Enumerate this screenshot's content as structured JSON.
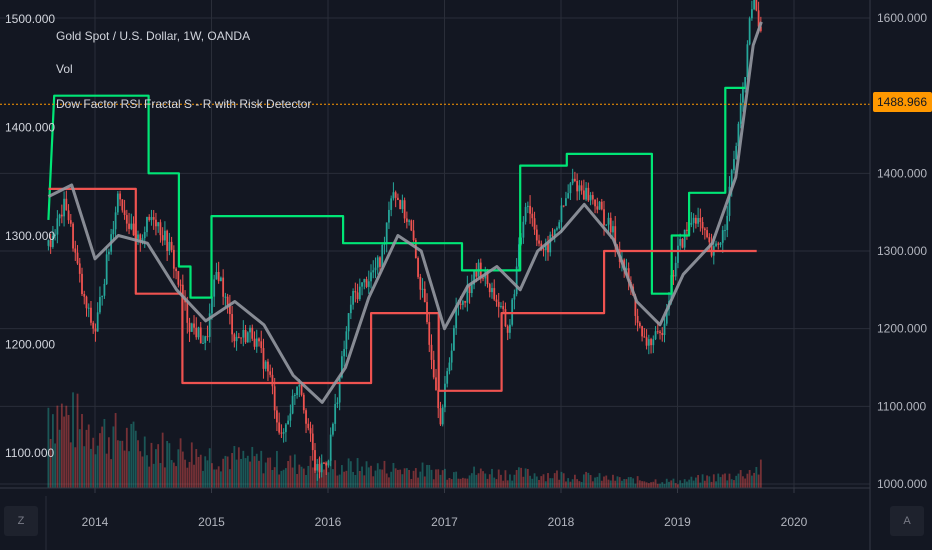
{
  "legend": {
    "symbol_line": "Gold Spot / U.S. Dollar, 1W, OANDA",
    "volume_label": "Vol",
    "indicator_label": "Dow Factor RSI Fractal S - R with Risk Detector"
  },
  "last_price_label": "1488.966",
  "corner_left_label": "Z",
  "corner_right_label": "A",
  "colors": {
    "background": "#131722",
    "resistance": "#00e676",
    "support": "#ef5350",
    "moving_average": "#9598a1",
    "up_candle": "#26a69a",
    "down_candle": "#ef5350",
    "last_price": "#ff9800",
    "grid": "#2a2e39"
  },
  "chart_data": {
    "type": "candlestick",
    "title": "Gold Spot / U.S. Dollar, 1W, OANDA",
    "x_ticks": [
      "2014",
      "2015",
      "2016",
      "2017",
      "2018",
      "2019",
      "2020"
    ],
    "left_axis_ticks": [
      "1500.000",
      "1400.000",
      "1300.000",
      "1200.000",
      "1100.000"
    ],
    "left_axis_range": [
      1070,
      1503
    ],
    "right_axis_ticks": [
      "1600.000",
      "1400.000",
      "1300.000",
      "1200.000",
      "1100.000",
      "1000.000"
    ],
    "right_axis_range": [
      998,
      1605
    ],
    "last_price": 1488.966,
    "x_range": [
      2013.6,
      2020.95
    ],
    "price_path": [
      [
        2013.6,
        1290
      ],
      [
        2013.75,
        1330
      ],
      [
        2013.9,
        1240
      ],
      [
        2014.0,
        1210
      ],
      [
        2014.2,
        1340
      ],
      [
        2014.35,
        1290
      ],
      [
        2014.5,
        1320
      ],
      [
        2014.65,
        1285
      ],
      [
        2014.8,
        1220
      ],
      [
        2014.95,
        1200
      ],
      [
        2015.05,
        1270
      ],
      [
        2015.2,
        1205
      ],
      [
        2015.35,
        1210
      ],
      [
        2015.5,
        1170
      ],
      [
        2015.6,
        1110
      ],
      [
        2015.75,
        1170
      ],
      [
        2015.9,
        1080
      ],
      [
        2016.0,
        1095
      ],
      [
        2016.2,
        1240
      ],
      [
        2016.45,
        1275
      ],
      [
        2016.55,
        1345
      ],
      [
        2016.7,
        1310
      ],
      [
        2016.85,
        1220
      ],
      [
        2016.97,
        1130
      ],
      [
        2017.1,
        1230
      ],
      [
        2017.3,
        1270
      ],
      [
        2017.45,
        1240
      ],
      [
        2017.55,
        1210
      ],
      [
        2017.7,
        1335
      ],
      [
        2017.85,
        1280
      ],
      [
        2017.97,
        1310
      ],
      [
        2018.1,
        1350
      ],
      [
        2018.3,
        1330
      ],
      [
        2018.45,
        1300
      ],
      [
        2018.6,
        1250
      ],
      [
        2018.7,
        1200
      ],
      [
        2018.85,
        1205
      ],
      [
        2019.0,
        1285
      ],
      [
        2019.15,
        1320
      ],
      [
        2019.3,
        1280
      ],
      [
        2019.4,
        1305
      ],
      [
        2019.55,
        1420
      ],
      [
        2019.65,
        1525
      ],
      [
        2019.72,
        1480
      ]
    ],
    "series": [
      {
        "name": "Resistance",
        "axis": "right",
        "steps": [
          [
            2013.6,
            1340
          ],
          [
            2013.65,
            1500
          ],
          [
            2014.46,
            1500
          ],
          [
            2014.46,
            1400
          ],
          [
            2014.72,
            1400
          ],
          [
            2014.72,
            1280
          ],
          [
            2014.82,
            1280
          ],
          [
            2014.82,
            1240
          ],
          [
            2015.0,
            1240
          ],
          [
            2015.0,
            1345
          ],
          [
            2016.13,
            1345
          ],
          [
            2016.13,
            1310
          ],
          [
            2017.15,
            1310
          ],
          [
            2017.15,
            1275
          ],
          [
            2017.65,
            1275
          ],
          [
            2017.65,
            1410
          ],
          [
            2018.05,
            1410
          ],
          [
            2018.05,
            1425
          ],
          [
            2018.78,
            1425
          ],
          [
            2018.78,
            1245
          ],
          [
            2018.95,
            1245
          ],
          [
            2018.95,
            1320
          ],
          [
            2019.1,
            1320
          ],
          [
            2019.1,
            1375
          ],
          [
            2019.41,
            1375
          ],
          [
            2019.41,
            1510
          ],
          [
            2019.58,
            1510
          ]
        ]
      },
      {
        "name": "Support",
        "axis": "right",
        "steps": [
          [
            2013.6,
            1380
          ],
          [
            2014.35,
            1380
          ],
          [
            2014.35,
            1245
          ],
          [
            2014.75,
            1245
          ],
          [
            2014.75,
            1130
          ],
          [
            2016.37,
            1130
          ],
          [
            2016.37,
            1220
          ],
          [
            2016.95,
            1220
          ],
          [
            2016.95,
            1120
          ],
          [
            2017.49,
            1120
          ],
          [
            2017.49,
            1220
          ],
          [
            2018.37,
            1220
          ],
          [
            2018.37,
            1300
          ],
          [
            2019.68,
            1300
          ]
        ]
      },
      {
        "name": "Moving average",
        "axis": "right",
        "points": [
          [
            2013.6,
            1370
          ],
          [
            2013.8,
            1385
          ],
          [
            2014.0,
            1290
          ],
          [
            2014.2,
            1320
          ],
          [
            2014.45,
            1310
          ],
          [
            2014.7,
            1250
          ],
          [
            2014.95,
            1210
          ],
          [
            2015.2,
            1235
          ],
          [
            2015.45,
            1205
          ],
          [
            2015.7,
            1140
          ],
          [
            2015.95,
            1105
          ],
          [
            2016.15,
            1150
          ],
          [
            2016.35,
            1240
          ],
          [
            2016.6,
            1320
          ],
          [
            2016.8,
            1300
          ],
          [
            2017.0,
            1200
          ],
          [
            2017.2,
            1255
          ],
          [
            2017.45,
            1280
          ],
          [
            2017.65,
            1250
          ],
          [
            2017.8,
            1300
          ],
          [
            2018.0,
            1325
          ],
          [
            2018.2,
            1360
          ],
          [
            2018.45,
            1315
          ],
          [
            2018.65,
            1235
          ],
          [
            2018.85,
            1205
          ],
          [
            2019.05,
            1270
          ],
          [
            2019.3,
            1310
          ],
          [
            2019.5,
            1395
          ],
          [
            2019.65,
            1565
          ],
          [
            2019.72,
            1595
          ]
        ]
      }
    ],
    "volume": {
      "range": [
        0,
        100
      ],
      "profile": [
        [
          2013.6,
          75
        ],
        [
          2013.8,
          62
        ],
        [
          2014.1,
          50
        ],
        [
          2014.5,
          38
        ],
        [
          2015.0,
          30
        ],
        [
          2015.5,
          24
        ],
        [
          2016.0,
          20
        ],
        [
          2016.5,
          18
        ],
        [
          2017.0,
          15
        ],
        [
          2018.0,
          12
        ],
        [
          2018.5,
          8
        ],
        [
          2019.0,
          6
        ],
        [
          2019.5,
          12
        ],
        [
          2019.72,
          18
        ]
      ]
    }
  }
}
